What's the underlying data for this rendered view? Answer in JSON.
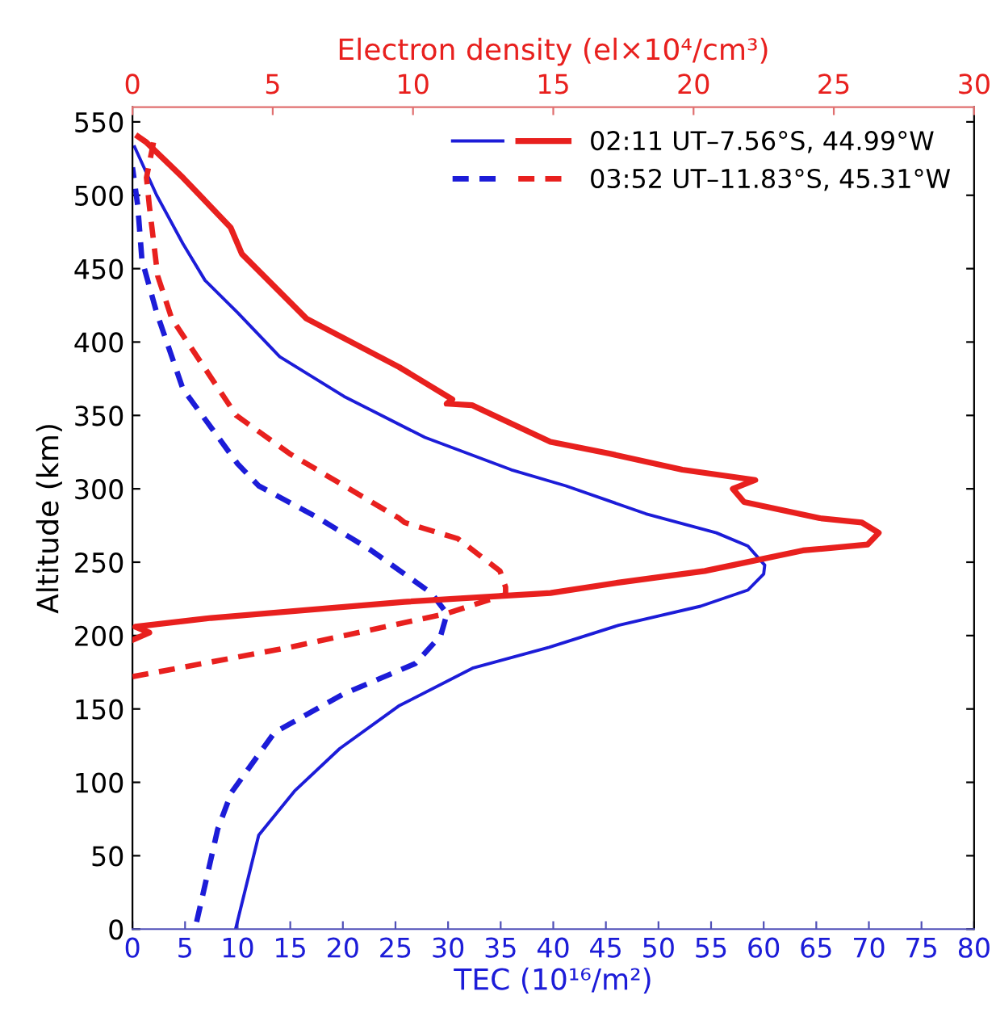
{
  "chart_data": {
    "type": "line",
    "xlabel": "TEC (10¹⁶/m²)",
    "ylabel": "Altitude (km)",
    "x2label": "Electron density (el×10⁴/cm³)",
    "xlim": [
      0,
      80
    ],
    "xticks": [
      0,
      5,
      10,
      15,
      20,
      25,
      30,
      35,
      40,
      45,
      50,
      55,
      60,
      65,
      70,
      75,
      80
    ],
    "x2lim": [
      0,
      30
    ],
    "x2ticks": [
      0,
      5,
      10,
      15,
      20,
      25,
      30
    ],
    "ylim": [
      0,
      560
    ],
    "yticks": [
      0,
      50,
      100,
      150,
      200,
      250,
      300,
      350,
      400,
      450,
      500,
      550
    ],
    "grid": false,
    "legend": "top right",
    "marker": "none",
    "series": [
      {
        "color": "#1c1cd8",
        "line_style": "solid",
        "x": [
          9.8,
          12,
          15.4,
          19.7,
          25.3,
          32.4,
          39.6,
          46.2,
          54,
          58.5,
          60,
          60.1,
          58.5,
          55.5,
          48.8,
          41.2,
          36,
          27.8,
          20.1,
          14,
          10,
          6.9,
          4.8,
          2.3,
          0.2
        ],
        "values": [
          0,
          64,
          94,
          123,
          152,
          178,
          192,
          207,
          220,
          231,
          242,
          248,
          261,
          270,
          283,
          302,
          313,
          335,
          363,
          390,
          420,
          442,
          467,
          500,
          533
        ]
      },
      {
        "name": "02:11 UT–7.56°S, 44.99°W",
        "color": "#e8201e",
        "line_style": "solid",
        "axis": "x2",
        "x": [
          0,
          0.6,
          0.1,
          2.8,
          9.7,
          14.9,
          17.3,
          20.4,
          23.9,
          26.2,
          26.6,
          26.0,
          24.5,
          21.8,
          21.4,
          22.2,
          19.6,
          17,
          14.9,
          12.1,
          11.2,
          11.4,
          9.5,
          6.2,
          3.9,
          3.5,
          1.8,
          0.5,
          0.2
        ],
        "values": [
          197,
          202,
          206,
          212,
          223,
          229,
          236,
          244,
          258,
          262,
          270,
          277,
          280,
          291,
          300,
          306,
          313,
          324,
          332,
          357,
          358,
          361,
          383,
          416,
          460,
          478,
          512,
          536,
          540
        ]
      },
      {
        "color": "#1c1cd8",
        "line_style": "dashed",
        "x": [
          6.1,
          8.1,
          9.4,
          13.5,
          20,
          26.9,
          29.3,
          29.9,
          28.4,
          22.7,
          17.7,
          12,
          10,
          4.8,
          2.3,
          0.9,
          0.5,
          0
        ],
        "values": [
          5,
          68,
          93,
          134,
          160,
          181,
          200,
          215,
          229,
          258,
          280,
          302,
          317,
          368,
          420,
          456,
          493,
          519
        ]
      },
      {
        "name": "03:52 UT–11.83°S, 45.31°W",
        "color": "#e8201e",
        "line_style": "dashed",
        "axis": "x2",
        "x": [
          0,
          5.6,
          11.2,
          13.3,
          13.3,
          13.1,
          11.6,
          9.7,
          9.5,
          5.6,
          3.7,
          1.4,
          0.9,
          0.6,
          0.5,
          0.75
        ],
        "values": [
          172,
          192,
          215,
          228,
          233,
          244,
          266,
          277,
          280,
          324,
          350,
          416,
          445,
          493,
          512,
          536
        ]
      }
    ]
  }
}
